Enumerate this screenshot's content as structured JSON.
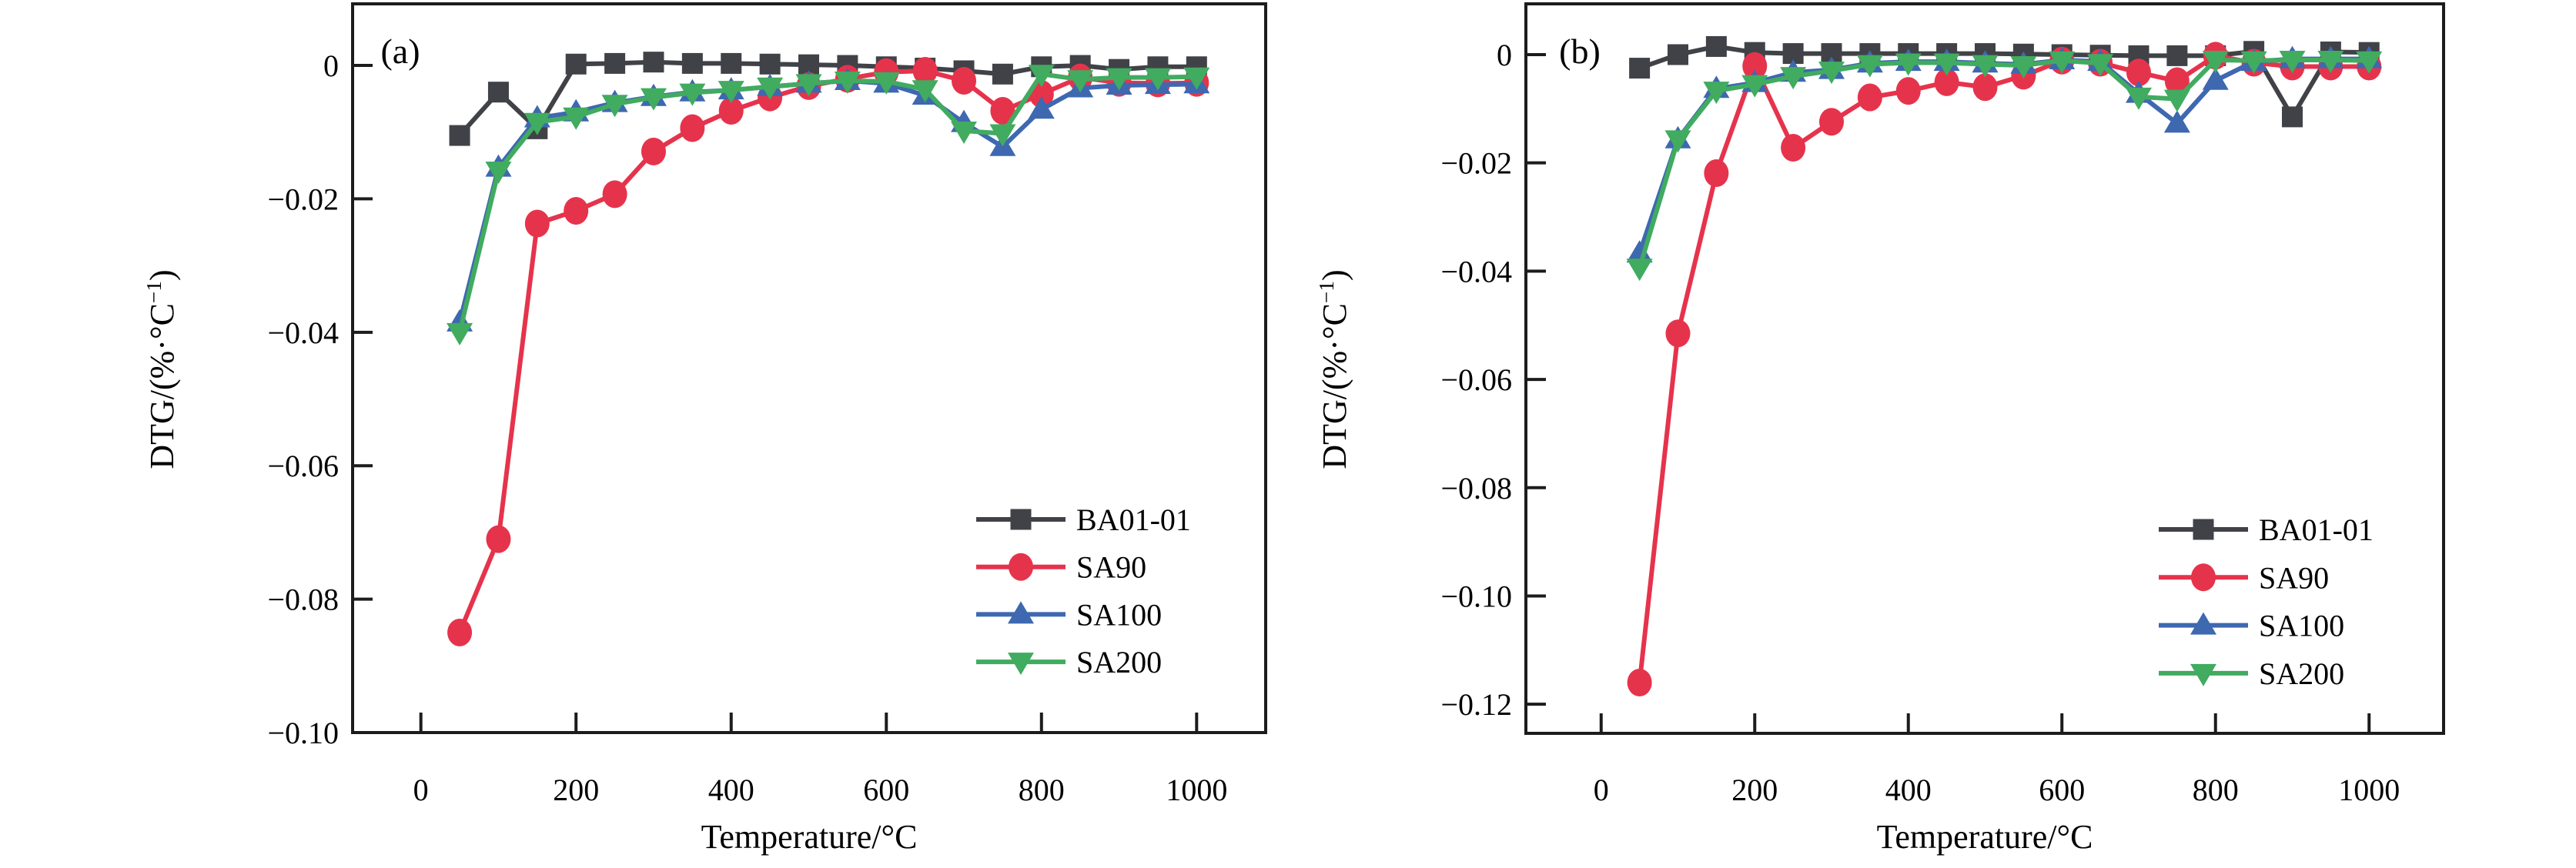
{
  "figure": {
    "background": "#ffffff",
    "description": "Two-panel DTG versus temperature line chart"
  },
  "colors": {
    "BA01-01": "#404247",
    "SA90": "#e6334c",
    "SA100": "#3e68b0",
    "SA200": "#41ab60",
    "axis": "#1c1c1c",
    "text": "#000000"
  },
  "chart_data": [
    {
      "id": "a",
      "type": "line",
      "panel_label": "(a)",
      "xlabel": "Temperature/℃",
      "ylabel": "DTG/(%·℃⁻¹)",
      "x_tick_labels": [
        "0",
        "200",
        "400",
        "600",
        "800",
        "1000"
      ],
      "x_tick_values": [
        0,
        200,
        400,
        600,
        800,
        1000
      ],
      "y_tick_labels": [
        "0",
        "−0.02",
        "−0.04",
        "−0.06",
        "−0.08",
        "−0.10"
      ],
      "y_tick_values": [
        0,
        -0.02,
        -0.04,
        -0.06,
        -0.08,
        -0.1
      ],
      "xlim": [
        -88,
        1089
      ],
      "ylim": [
        -0.1,
        0.00923
      ],
      "grid": false,
      "legend_position": "lower-right",
      "x": [
        50,
        100,
        150,
        200,
        250,
        300,
        350,
        400,
        450,
        500,
        550,
        600,
        650,
        700,
        750,
        800,
        850,
        900,
        950,
        1000
      ],
      "series": [
        {
          "name": "BA01-01",
          "marker": "square",
          "color": "#404247",
          "values": [
            -0.0105,
            -0.004,
            -0.0095,
            0.0002,
            0.0003,
            0.0005,
            0.0003,
            0.0003,
            0.0002,
            0.0001,
            0.0,
            -0.0002,
            -0.0004,
            -0.0008,
            -0.0013,
            -0.0002,
            0.0,
            -0.0006,
            -0.0002,
            -0.0002
          ]
        },
        {
          "name": "SA90",
          "marker": "circle",
          "color": "#e6334c",
          "values": [
            -0.085,
            -0.071,
            -0.0237,
            -0.0218,
            -0.0193,
            -0.0129,
            -0.0094,
            -0.0068,
            -0.0048,
            -0.0031,
            -0.002,
            -0.001,
            -0.0008,
            -0.0023,
            -0.0068,
            -0.0043,
            -0.0018,
            -0.0026,
            -0.0027,
            -0.0026
          ]
        },
        {
          "name": "SA100",
          "marker": "triangle-up",
          "color": "#3e68b0",
          "values": [
            -0.0385,
            -0.0153,
            -0.0079,
            -0.007,
            -0.0056,
            -0.0047,
            -0.004,
            -0.0037,
            -0.0032,
            -0.0027,
            -0.0023,
            -0.0027,
            -0.0045,
            -0.0086,
            -0.0122,
            -0.0066,
            -0.0034,
            -0.003,
            -0.0029,
            -0.0028
          ]
        },
        {
          "name": "SA200",
          "marker": "triangle-down",
          "color": "#41ab60",
          "values": [
            -0.04,
            -0.0158,
            -0.0085,
            -0.0077,
            -0.0058,
            -0.0048,
            -0.0041,
            -0.0037,
            -0.0032,
            -0.0027,
            -0.0023,
            -0.0024,
            -0.0036,
            -0.0098,
            -0.0102,
            -0.0013,
            -0.0021,
            -0.0018,
            -0.0018,
            -0.0017
          ]
        }
      ],
      "legend": [
        "BA01-01",
        "SA90",
        "SA100",
        "SA200"
      ]
    },
    {
      "id": "b",
      "type": "line",
      "panel_label": "(b)",
      "xlabel": "Temperature/℃",
      "ylabel": "DTG/(%·℃⁻¹)",
      "x_tick_labels": [
        "0",
        "200",
        "400",
        "600",
        "800",
        "1000"
      ],
      "x_tick_values": [
        0,
        200,
        400,
        600,
        800,
        1000
      ],
      "y_tick_labels": [
        "0",
        "−0.02",
        "−0.04",
        "−0.06",
        "−0.08",
        "−0.10",
        "−0.12"
      ],
      "y_tick_values": [
        0,
        -0.02,
        -0.04,
        -0.06,
        -0.08,
        -0.1,
        -0.12
      ],
      "xlim": [
        -98,
        1097
      ],
      "ylim": [
        -0.12538,
        0.00938
      ],
      "grid": false,
      "legend_position": "lower-right",
      "x": [
        50,
        100,
        150,
        200,
        250,
        300,
        350,
        400,
        450,
        500,
        550,
        600,
        650,
        700,
        750,
        800,
        850,
        900,
        950,
        1000
      ],
      "series": [
        {
          "name": "BA01-01",
          "marker": "square",
          "color": "#404247",
          "values": [
            -0.0025,
            0.0,
            0.0015,
            0.0004,
            0.0002,
            0.0002,
            0.0002,
            0.0002,
            0.0002,
            0.0002,
            0.0001,
            0.0,
            -0.0001,
            -0.0002,
            -0.0002,
            -0.0002,
            0.0006,
            -0.0115,
            0.0005,
            0.0004
          ]
        },
        {
          "name": "SA90",
          "marker": "circle",
          "color": "#e6334c",
          "values": [
            -0.116,
            -0.0515,
            -0.0219,
            -0.0021,
            -0.0172,
            -0.0124,
            -0.0079,
            -0.0067,
            -0.0051,
            -0.006,
            -0.0039,
            -0.0011,
            -0.0015,
            -0.0033,
            -0.0049,
            -0.0002,
            -0.0015,
            -0.0022,
            -0.0022,
            -0.0022
          ]
        },
        {
          "name": "SA100",
          "marker": "triangle-up",
          "color": "#3e68b0",
          "values": [
            -0.0367,
            -0.0156,
            -0.0063,
            -0.0052,
            -0.0033,
            -0.0028,
            -0.0016,
            -0.0013,
            -0.0013,
            -0.0016,
            -0.0018,
            -0.001,
            -0.0013,
            -0.0072,
            -0.0127,
            -0.0048,
            -0.0013,
            -0.0008,
            -0.0008,
            -0.0008
          ]
        },
        {
          "name": "SA200",
          "marker": "triangle-down",
          "color": "#41ab60",
          "values": [
            -0.0394,
            -0.0157,
            -0.0067,
            -0.0055,
            -0.004,
            -0.003,
            -0.0018,
            -0.0015,
            -0.0015,
            -0.0018,
            -0.002,
            -0.0011,
            -0.0016,
            -0.0078,
            -0.0082,
            -0.001,
            -0.0011,
            -0.001,
            -0.001,
            -0.0011
          ]
        }
      ],
      "legend": [
        "BA01-01",
        "SA90",
        "SA100",
        "SA200"
      ]
    }
  ]
}
